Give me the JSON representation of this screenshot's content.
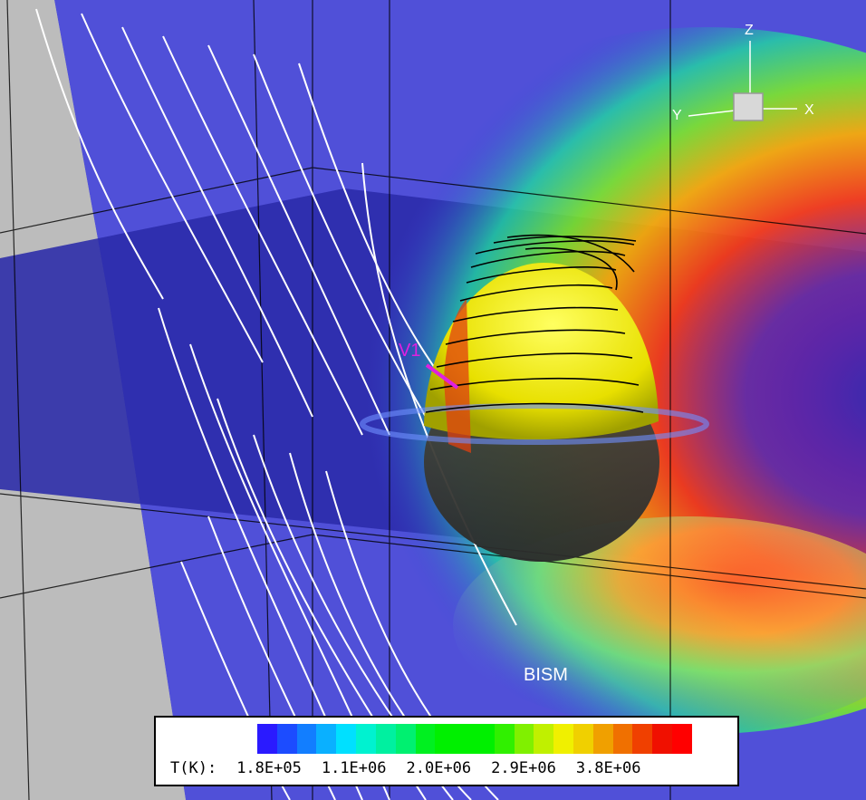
{
  "axes": {
    "z": "Z",
    "y": "Y",
    "x": "X"
  },
  "labels": {
    "v1": "V1",
    "bism": "BISM"
  },
  "colorbar": {
    "title": "T(K):",
    "ticks": [
      "1.8E+05",
      "1.1E+06",
      "2.0E+06",
      "2.9E+06",
      "3.8E+06"
    ],
    "colors": [
      "#2a1aff",
      "#1c4cff",
      "#127eff",
      "#0ab0ff",
      "#00e0ff",
      "#00f2d0",
      "#00f0a0",
      "#00f070",
      "#00f020",
      "#00f000",
      "#00f000",
      "#00f000",
      "#30f000",
      "#80f000",
      "#c0f000",
      "#f0f000",
      "#f0d000",
      "#f0a000",
      "#f07000",
      "#f04000",
      "#f01000",
      "#ff0000"
    ],
    "colorbar_palette_name": "temperature"
  }
}
